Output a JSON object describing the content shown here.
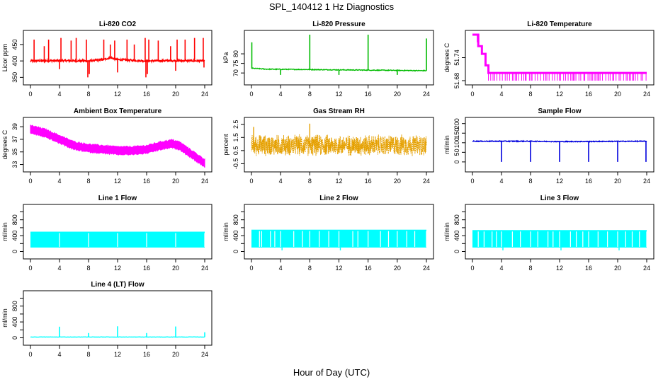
{
  "figure": {
    "title": "SPL_140412  1 Hz Diagnostics",
    "xlabel": "Hour of Day (UTC)"
  },
  "chart_data": [
    {
      "id": "co2",
      "type": "line",
      "title": "Li-820 CO2",
      "ylabel": "Licor ppm",
      "color": "#ff0000",
      "style": "line",
      "xlim": [
        0,
        24
      ],
      "ylim": [
        340,
        480
      ],
      "xticks": [
        0,
        4,
        8,
        12,
        16,
        20,
        24
      ],
      "yticks": [
        350,
        400,
        450
      ],
      "yticklabels": [
        "350",
        "400",
        "450"
      ],
      "baseline": [
        [
          0,
          400
        ],
        [
          4,
          401
        ],
        [
          8,
          400
        ],
        [
          10,
          404
        ],
        [
          11,
          410
        ],
        [
          12,
          404
        ],
        [
          16,
          400
        ],
        [
          20,
          401
        ],
        [
          24,
          400
        ]
      ],
      "noise": 3,
      "density": 600,
      "spikes": [
        [
          0.5,
          465
        ],
        [
          1.9,
          445
        ],
        [
          2.5,
          465
        ],
        [
          4.2,
          470
        ],
        [
          5.6,
          462
        ],
        [
          6.3,
          470
        ],
        [
          7.7,
          465
        ],
        [
          10.1,
          465
        ],
        [
          11.0,
          450
        ],
        [
          11.6,
          462
        ],
        [
          13.3,
          465
        ],
        [
          14.3,
          450
        ],
        [
          15.8,
          470
        ],
        [
          16.3,
          465
        ],
        [
          17.6,
          462
        ],
        [
          19.3,
          445
        ],
        [
          20.2,
          465
        ],
        [
          21.3,
          465
        ],
        [
          22.6,
          470
        ],
        [
          23.8,
          470
        ]
      ],
      "dips": [
        [
          4.0,
          375
        ],
        [
          7.9,
          350
        ],
        [
          8.1,
          360
        ],
        [
          12.0,
          365
        ],
        [
          15.9,
          350
        ],
        [
          16.1,
          360
        ],
        [
          20.0,
          370
        ],
        [
          23.9,
          380
        ]
      ]
    },
    {
      "id": "pressure",
      "type": "line",
      "title": "Li-820 Pressure",
      "ylabel": "kPa",
      "color": "#00bb00",
      "style": "line",
      "xlim": [
        0,
        24
      ],
      "ylim": [
        66,
        90
      ],
      "xticks": [
        0,
        4,
        8,
        12,
        16,
        20,
        24
      ],
      "yticks": [
        70,
        75,
        80
      ],
      "yticklabels": [
        "70",
        "75",
        "80"
      ],
      "baseline": [
        [
          0,
          72.5
        ],
        [
          2,
          72.0
        ],
        [
          24,
          71.2
        ]
      ],
      "noise": 0.2,
      "density": 400,
      "spikes": [
        [
          0.05,
          86
        ],
        [
          8.0,
          90
        ],
        [
          16.0,
          90
        ],
        [
          24.0,
          88
        ]
      ],
      "dips": [
        [
          4.0,
          69
        ],
        [
          12.0,
          69
        ],
        [
          20.0,
          69
        ]
      ]
    },
    {
      "id": "licor_temp",
      "type": "line",
      "title": "Li-820 Temperature",
      "ylabel": "degrees C",
      "color": "#ff00ff",
      "style": "steps",
      "xlim": [
        0,
        24
      ],
      "ylim": [
        51.68,
        51.8
      ],
      "xticks": [
        0,
        4,
        8,
        12,
        16,
        20,
        24
      ],
      "yticks": [
        51.68,
        51.74
      ],
      "yticklabels": [
        "51.68",
        "51.74"
      ],
      "steps": [
        [
          0.0,
          51.8
        ],
        [
          0.8,
          51.77
        ],
        [
          1.3,
          51.75
        ],
        [
          1.8,
          51.72
        ],
        [
          2.2,
          51.7
        ],
        [
          24.0,
          51.7
        ]
      ],
      "band": [
        0.6,
        51.78,
        0.8,
        51.8
      ],
      "ticks_low": [
        51.68,
        51.7
      ]
    },
    {
      "id": "box_temp",
      "type": "line",
      "title": "Ambient Box Temperature",
      "ylabel": "degrees C",
      "color": "#ff00ff",
      "style": "band",
      "xlim": [
        0,
        24
      ],
      "ylim": [
        32.5,
        39.8
      ],
      "xticks": [
        0,
        4,
        8,
        12,
        16,
        20,
        24
      ],
      "yticks": [
        33,
        35,
        37,
        39
      ],
      "yticklabels": [
        "33",
        "35",
        "37",
        "39"
      ],
      "baseline": [
        [
          0,
          38.6
        ],
        [
          2,
          38.0
        ],
        [
          4,
          37.0
        ],
        [
          6,
          36.0
        ],
        [
          8,
          35.6
        ],
        [
          10,
          35.4
        ],
        [
          12,
          35.2
        ],
        [
          14,
          35.2
        ],
        [
          16,
          35.4
        ],
        [
          18,
          36.0
        ],
        [
          19.5,
          36.3
        ],
        [
          20.5,
          36.0
        ],
        [
          22,
          34.8
        ],
        [
          24,
          33.2
        ]
      ],
      "halfwidth": 0.6
    },
    {
      "id": "rh",
      "type": "line",
      "title": "Gas Stream RH",
      "ylabel": "percent",
      "color": "#e5a000",
      "style": "noise",
      "xlim": [
        0,
        24
      ],
      "ylim": [
        -0.8,
        2.7
      ],
      "xticks": [
        0,
        4,
        8,
        12,
        16,
        20,
        24
      ],
      "yticks": [
        -0.5,
        0.5,
        1.5,
        2.5
      ],
      "yticklabels": [
        "-0.5",
        "0.5",
        "1.5",
        "2.5"
      ],
      "center": 0.9,
      "spread": 0.75,
      "density": 1200,
      "spikes": [
        [
          8.0,
          2.55
        ],
        [
          0.3,
          2.3
        ]
      ]
    },
    {
      "id": "sample_flow",
      "type": "line",
      "title": "Sample Flow",
      "ylabel": "ml/min",
      "color": "#0000dd",
      "style": "line",
      "xlim": [
        0,
        24
      ],
      "ylim": [
        -30,
        210
      ],
      "xticks": [
        0,
        4,
        8,
        12,
        16,
        20,
        24
      ],
      "yticks": [
        0,
        50,
        100,
        150,
        200
      ],
      "yticklabels": [
        "0",
        "50",
        "100",
        "150",
        "200"
      ],
      "baseline": [
        [
          0,
          108
        ],
        [
          8,
          108
        ],
        [
          12,
          106
        ],
        [
          24,
          108
        ]
      ],
      "noise": 2,
      "density": 500,
      "spikes": [],
      "dips": [
        [
          4.0,
          0
        ],
        [
          8.0,
          0
        ],
        [
          12.0,
          0
        ],
        [
          16.0,
          0
        ],
        [
          20.0,
          0
        ],
        [
          23.9,
          0
        ]
      ]
    },
    {
      "id": "line1",
      "type": "line",
      "title": "Line 1 Flow",
      "ylabel": "ml/min",
      "color": "#00ffff",
      "style": "block",
      "xlim": [
        0,
        24
      ],
      "ylim": [
        -80,
        1080
      ],
      "xticks": [
        0,
        4,
        8,
        12,
        16,
        20,
        24
      ],
      "yticks": [
        0,
        200,
        400,
        600,
        800,
        1000
      ],
      "yticklabels": [
        "0",
        "",
        "400",
        "",
        "800",
        ""
      ],
      "block": [
        100,
        500
      ],
      "gaps": [
        4.0,
        8.0,
        12.0,
        16.0,
        20.0,
        24.0
      ],
      "lowdips": []
    },
    {
      "id": "line2",
      "type": "line",
      "title": "Line 2 Flow",
      "ylabel": "ml/min",
      "color": "#00ffff",
      "style": "block",
      "xlim": [
        0,
        24
      ],
      "ylim": [
        -80,
        1080
      ],
      "xticks": [
        0,
        4,
        8,
        12,
        16,
        20,
        24
      ],
      "yticks": [
        0,
        200,
        400,
        600,
        800,
        1000
      ],
      "yticklabels": [
        "0",
        "",
        "400",
        "",
        "800",
        ""
      ],
      "block": [
        100,
        550
      ],
      "gaps": [
        1.1,
        1.4,
        2.6,
        3.2,
        4.0,
        5.8,
        7.0,
        8.0,
        9.3,
        10.6,
        12.0,
        13.9,
        14.6,
        16.0,
        17.7,
        18.8,
        20.0,
        21.3,
        22.4,
        24.0
      ],
      "lowdips": [
        4.0,
        12.0
      ]
    },
    {
      "id": "line3",
      "type": "line",
      "title": "Line 3 Flow",
      "ylabel": "ml/min",
      "color": "#00ffff",
      "style": "block",
      "xlim": [
        0,
        24
      ],
      "ylim": [
        -80,
        1080
      ],
      "xticks": [
        0,
        4,
        8,
        12,
        16,
        20,
        24
      ],
      "yticks": [
        0,
        200,
        400,
        600,
        800,
        1000
      ],
      "yticklabels": [
        "0",
        "",
        "400",
        "",
        "800",
        ""
      ],
      "block": [
        100,
        540
      ],
      "gaps": [
        0.8,
        1.6,
        2.7,
        3.3,
        4.0,
        5.5,
        6.6,
        8.0,
        9.0,
        10.4,
        11.1,
        12.0,
        13.5,
        14.3,
        15.2,
        16.0,
        17.3,
        18.6,
        20.0,
        21.1,
        22.0,
        23.0,
        24.0
      ],
      "lowdips": [
        4.0,
        12.0,
        20.0
      ]
    },
    {
      "id": "line4",
      "type": "line",
      "title": "Line 4 (LT) Flow",
      "ylabel": "ml/min",
      "color": "#00ffff",
      "style": "line",
      "xlim": [
        0,
        24
      ],
      "ylim": [
        -80,
        1080
      ],
      "xticks": [
        0,
        4,
        8,
        12,
        16,
        20,
        24
      ],
      "yticks": [
        0,
        200,
        400,
        600,
        800,
        1000
      ],
      "yticklabels": [
        "0",
        "",
        "400",
        "",
        "800",
        ""
      ],
      "baseline": [
        [
          0,
          20
        ],
        [
          24,
          20
        ]
      ],
      "noise": 4,
      "density": 200,
      "spikes": [
        [
          4.0,
          280
        ],
        [
          8.0,
          120
        ],
        [
          12.0,
          290
        ],
        [
          16.0,
          120
        ],
        [
          20.0,
          285
        ],
        [
          24.0,
          140
        ]
      ],
      "dips": []
    }
  ]
}
